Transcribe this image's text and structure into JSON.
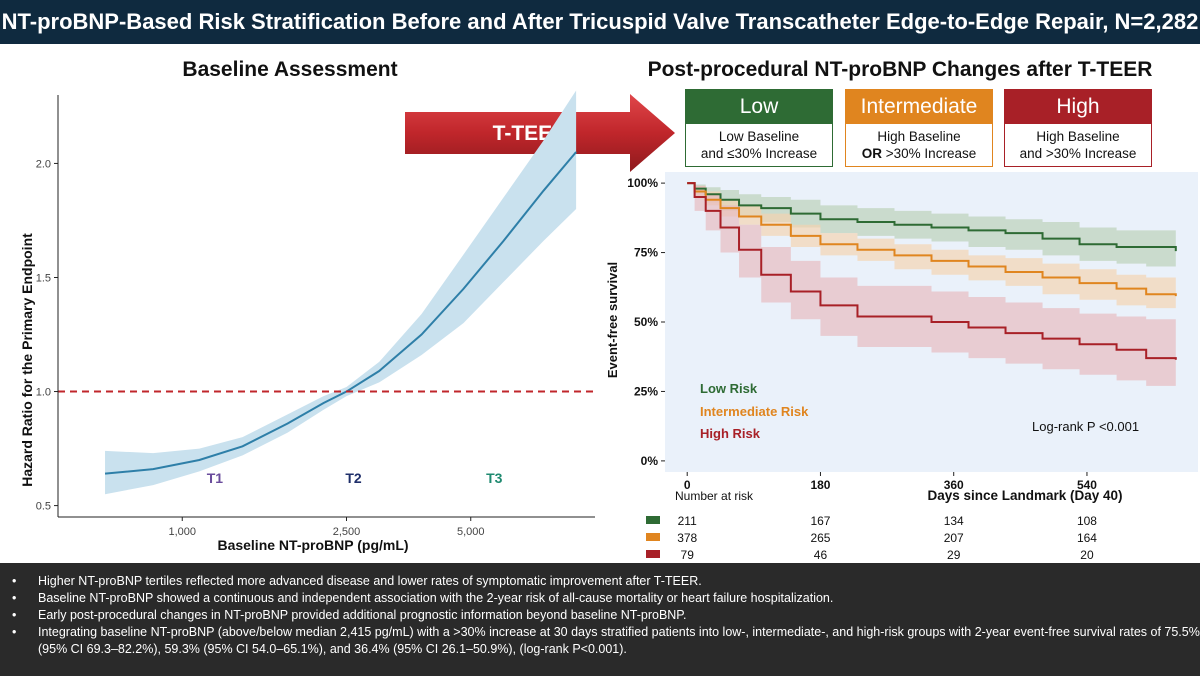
{
  "header": {
    "title": "NT-proBNP-Based Risk Stratification Before and After Tricuspid Valve Transcatheter Edge-to-Edge Repair, N=2,282"
  },
  "left_panel": {
    "title": "Baseline Assessment"
  },
  "right_panel": {
    "title": "Post-procedural NT-proBNP Changes after T-TEER"
  },
  "arrow": {
    "label": "T-TEER",
    "color": "#c0262b"
  },
  "risk_boxes": [
    {
      "title": "Low",
      "line1": "Low Baseline",
      "line2": "and ≤30% Increase",
      "color": "#2e6b34"
    },
    {
      "title": "Intermediate",
      "line1": "High Baseline",
      "line2_bold": "OR",
      "line2_rest": " >30% Increase",
      "color": "#e0851f"
    },
    {
      "title": "High",
      "line1": "High Baseline",
      "line2": "and >30% Increase",
      "color": "#a82027"
    }
  ],
  "chart_data": [
    {
      "type": "line",
      "xlabel": "Baseline NT-proBNP (pg/mL)",
      "ylabel": "Hazard Ratio for the Primary Endpoint",
      "x_scale": "log",
      "xlim": [
        500,
        10000
      ],
      "ylim": [
        0.45,
        2.3
      ],
      "x_ticks": [
        1000,
        2500,
        5000
      ],
      "x_tick_labels": [
        "1,000",
        "2,500",
        "5,000"
      ],
      "y_ticks": [
        0.5,
        1.0,
        1.5,
        2.0
      ],
      "y_tick_labels": [
        "0.5",
        "1.0",
        "1.5",
        "2.0"
      ],
      "reference_line": {
        "y": 1.0,
        "style": "dashed",
        "color": "#c0262b"
      },
      "series": [
        {
          "x": [
            650,
            850,
            1100,
            1400,
            1800,
            2200,
            2500,
            3000,
            3800,
            4800,
            6000,
            7500,
            9000
          ],
          "y": [
            0.64,
            0.66,
            0.7,
            0.76,
            0.86,
            0.95,
            1.0,
            1.09,
            1.25,
            1.45,
            1.66,
            1.88,
            2.05
          ],
          "lower": [
            0.55,
            0.59,
            0.65,
            0.72,
            0.82,
            0.92,
            0.98,
            1.04,
            1.16,
            1.3,
            1.48,
            1.66,
            1.8
          ],
          "upper": [
            0.74,
            0.73,
            0.75,
            0.8,
            0.9,
            0.98,
            1.02,
            1.13,
            1.34,
            1.6,
            1.85,
            2.1,
            2.32
          ],
          "color": "#2e7fa8",
          "band_color": "#c9e1ee"
        }
      ],
      "annotations": [
        {
          "text": "T1",
          "x": 1200,
          "y": 0.6,
          "color": "#6a4c9c"
        },
        {
          "text": "T2",
          "x": 2600,
          "y": 0.6,
          "color": "#1f2f6a"
        },
        {
          "text": "T3",
          "x": 5700,
          "y": 0.6,
          "color": "#1f8a70"
        }
      ]
    },
    {
      "type": "line",
      "step": true,
      "xlabel": "Days since Landmark (Day 40)",
      "ylabel": "Event-free survival",
      "xlim": [
        -30,
        690
      ],
      "ylim": [
        -0.04,
        1.04
      ],
      "x_ticks": [
        0,
        180,
        360,
        540
      ],
      "y_ticks": [
        0,
        0.25,
        0.5,
        0.75,
        1.0
      ],
      "y_tick_labels": [
        "0%",
        "25%",
        "50%",
        "75%",
        "100%"
      ],
      "background": "#eaf1fa",
      "series": [
        {
          "name": "Low Risk",
          "color": "#2e6b34",
          "band_color": "#b8cfb5",
          "x": [
            0,
            10,
            25,
            45,
            70,
            100,
            140,
            180,
            230,
            280,
            330,
            380,
            430,
            480,
            530,
            580,
            620,
            660
          ],
          "y": [
            1.0,
            0.98,
            0.96,
            0.94,
            0.92,
            0.91,
            0.89,
            0.87,
            0.86,
            0.85,
            0.84,
            0.83,
            0.82,
            0.8,
            0.78,
            0.77,
            0.77,
            0.755
          ],
          "lower": [
            1.0,
            0.96,
            0.93,
            0.9,
            0.88,
            0.86,
            0.84,
            0.82,
            0.81,
            0.8,
            0.79,
            0.77,
            0.76,
            0.74,
            0.72,
            0.71,
            0.7,
            0.69
          ],
          "upper": [
            1.0,
            0.995,
            0.985,
            0.975,
            0.96,
            0.95,
            0.94,
            0.92,
            0.91,
            0.9,
            0.89,
            0.88,
            0.87,
            0.86,
            0.84,
            0.83,
            0.83,
            0.82
          ]
        },
        {
          "name": "Intermediate Risk",
          "color": "#e0851f",
          "band_color": "#f4d3ad",
          "x": [
            0,
            10,
            25,
            45,
            70,
            100,
            140,
            180,
            230,
            280,
            330,
            380,
            430,
            480,
            530,
            580,
            620,
            660
          ],
          "y": [
            1.0,
            0.97,
            0.94,
            0.91,
            0.88,
            0.85,
            0.81,
            0.78,
            0.76,
            0.74,
            0.72,
            0.7,
            0.68,
            0.66,
            0.64,
            0.62,
            0.6,
            0.593
          ],
          "lower": [
            1.0,
            0.95,
            0.92,
            0.88,
            0.85,
            0.81,
            0.77,
            0.74,
            0.72,
            0.69,
            0.67,
            0.65,
            0.63,
            0.6,
            0.58,
            0.56,
            0.55,
            0.54
          ],
          "upper": [
            1.0,
            0.99,
            0.97,
            0.94,
            0.92,
            0.89,
            0.85,
            0.82,
            0.8,
            0.78,
            0.76,
            0.74,
            0.73,
            0.71,
            0.69,
            0.67,
            0.66,
            0.651
          ]
        },
        {
          "name": "High Risk",
          "color": "#a82027",
          "band_color": "#e7b8bd",
          "x": [
            0,
            10,
            25,
            45,
            70,
            100,
            140,
            180,
            230,
            280,
            330,
            380,
            430,
            480,
            530,
            580,
            620,
            660
          ],
          "y": [
            1.0,
            0.95,
            0.9,
            0.84,
            0.76,
            0.67,
            0.61,
            0.56,
            0.52,
            0.52,
            0.5,
            0.48,
            0.46,
            0.44,
            0.42,
            0.4,
            0.37,
            0.364
          ],
          "lower": [
            1.0,
            0.9,
            0.83,
            0.75,
            0.66,
            0.57,
            0.51,
            0.45,
            0.41,
            0.41,
            0.39,
            0.37,
            0.35,
            0.33,
            0.31,
            0.29,
            0.27,
            0.261
          ],
          "upper": [
            1.0,
            0.99,
            0.96,
            0.92,
            0.85,
            0.77,
            0.72,
            0.66,
            0.63,
            0.63,
            0.61,
            0.59,
            0.57,
            0.55,
            0.53,
            0.52,
            0.51,
            0.509
          ]
        }
      ],
      "annotation": "Log-rank P <0.001",
      "risk_table": {
        "title": "Number at risk",
        "columns": [
          0,
          180,
          360,
          540
        ],
        "rows": [
          {
            "color": "#2e6b34",
            "values": [
              "211",
              "167",
              "134",
              "108"
            ]
          },
          {
            "color": "#e0851f",
            "values": [
              "378",
              "265",
              "207",
              "164"
            ]
          },
          {
            "color": "#a82027",
            "values": [
              "79",
              "46",
              "29",
              "20"
            ]
          }
        ]
      }
    }
  ],
  "footer": {
    "bullets": [
      "Higher NT-proBNP tertiles reflected more advanced disease and lower rates of symptomatic improvement after T-TEER.",
      "Baseline NT-proBNP showed a continuous and independent association with the 2-year risk of all-cause mortality or heart failure hospitalization.",
      "Early post-procedural changes in NT-proBNP provided additional prognostic information beyond baseline NT-proBNP.",
      "Integrating baseline NT-proBNP (above/below median 2,415 pg/mL) with a >30% increase at 30 days stratified patients into low-, intermediate-, and high-risk groups with 2-year event-free survival rates of 75.5% (95% CI 69.3–82.2%), 59.3% (95% CI 54.0–65.1%), and 36.4% (95% CI 26.1–50.9%), (log-rank P<0.001)."
    ]
  }
}
